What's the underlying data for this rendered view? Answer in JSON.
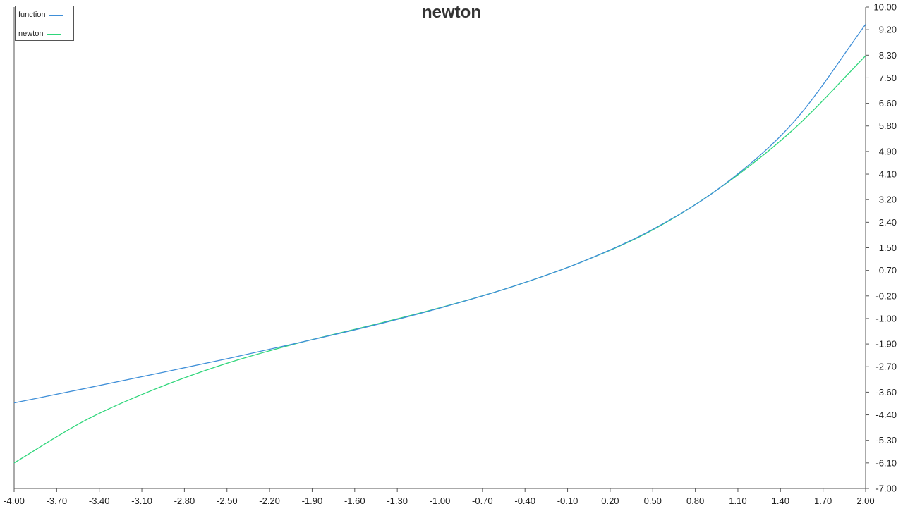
{
  "chart_data": {
    "type": "line",
    "title": "newton",
    "xlabel": "",
    "ylabel": "",
    "xlim": [
      -4.0,
      2.0
    ],
    "ylim": [
      -7.0,
      10.0
    ],
    "grid": false,
    "legend_position": "top-left",
    "y_axis_side": "right",
    "x_ticks": [
      "-4.00",
      "-3.70",
      "-3.40",
      "-3.10",
      "-2.80",
      "-2.50",
      "-2.20",
      "-1.90",
      "-1.60",
      "-1.30",
      "-1.00",
      "-0.70",
      "-0.40",
      "-0.10",
      "0.20",
      "0.50",
      "0.80",
      "1.10",
      "1.40",
      "1.70",
      "2.00"
    ],
    "y_ticks": [
      "10.00",
      "9.20",
      "8.30",
      "7.50",
      "6.60",
      "5.80",
      "4.90",
      "4.10",
      "3.20",
      "2.40",
      "1.50",
      "0.70",
      "-0.20",
      "-1.00",
      "-1.90",
      "-2.70",
      "-3.60",
      "-4.40",
      "-5.30",
      "-6.10",
      "-7.00"
    ],
    "series": [
      {
        "name": "function",
        "color": "#3f8fd8",
        "x": [
          -4.0,
          -3.5,
          -3.0,
          -2.5,
          -2.0,
          -1.5,
          -1.0,
          -0.5,
          0.0,
          0.5,
          1.0,
          1.5,
          2.0
        ],
        "y": [
          -3.98,
          -3.47,
          -2.95,
          -2.42,
          -1.86,
          -1.28,
          -0.63,
          0.11,
          1.0,
          2.15,
          3.72,
          5.98,
          9.39
        ]
      },
      {
        "name": "newton",
        "color": "#2ed67a",
        "x": [
          -4.0,
          -3.5,
          -3.0,
          -2.5,
          -2.0,
          -1.5,
          -1.0,
          -0.5,
          0.0,
          0.5,
          1.0,
          1.5,
          2.0
        ],
        "y": [
          -6.1,
          -4.6,
          -3.48,
          -2.58,
          -1.87,
          -1.26,
          -0.62,
          0.11,
          1.0,
          2.13,
          3.71,
          5.72,
          8.28
        ]
      }
    ]
  }
}
